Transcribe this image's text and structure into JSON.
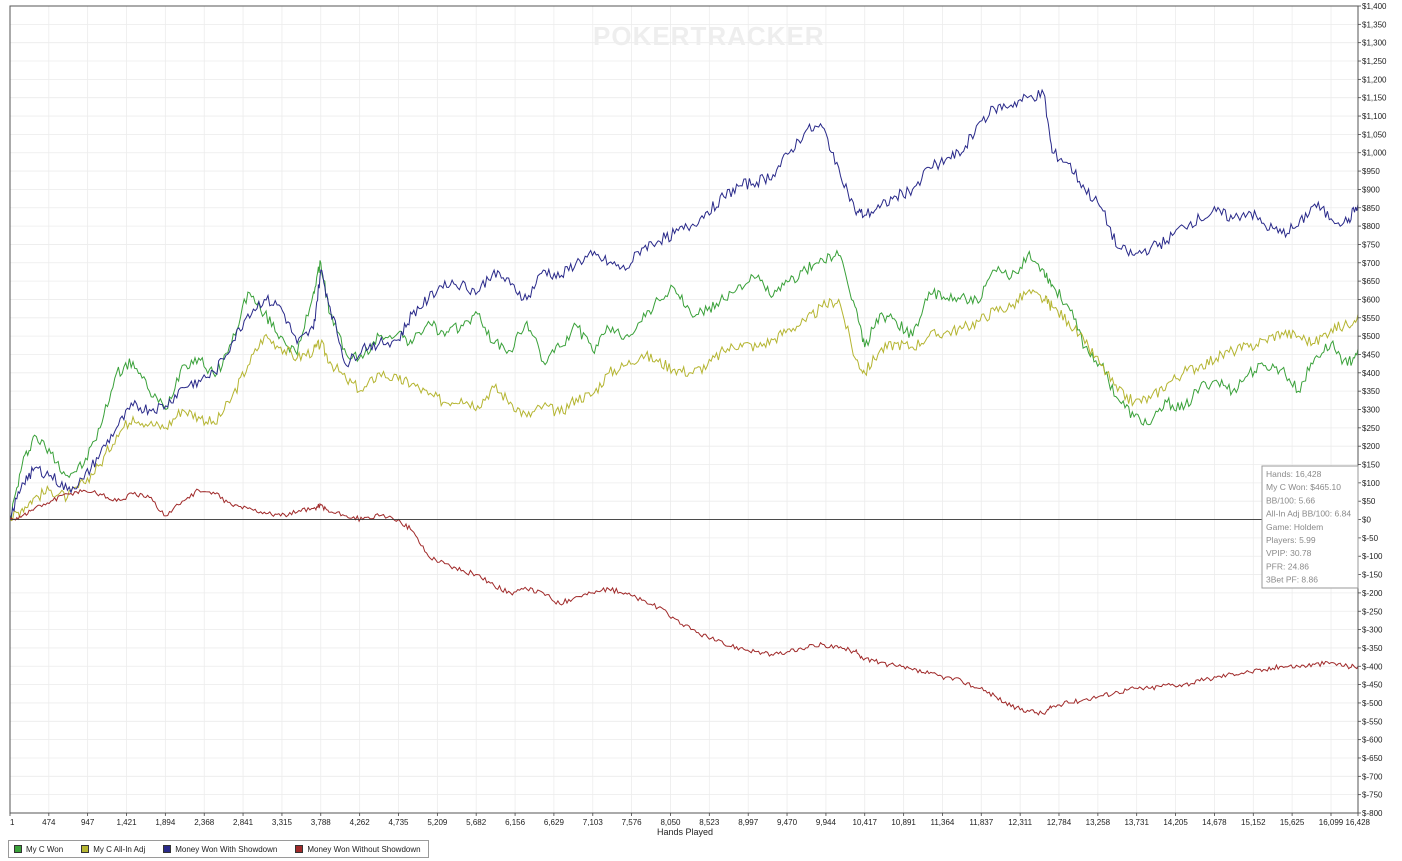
{
  "watermark": "POKERTRACKER",
  "chart_data": {
    "type": "line",
    "xlabel": "Hands Played",
    "ylabel": "",
    "xlim": [
      1,
      16428
    ],
    "ylim": [
      -800,
      1400
    ],
    "x_ticks": [
      1,
      474,
      947,
      1421,
      1894,
      2368,
      2841,
      3315,
      3788,
      4262,
      4735,
      5209,
      5682,
      6156,
      6629,
      7103,
      7576,
      8050,
      8523,
      8997,
      9470,
      9944,
      10417,
      10891,
      11364,
      11837,
      12311,
      12784,
      13258,
      13731,
      14205,
      14678,
      15152,
      15625,
      16099,
      16428
    ],
    "x_tick_labels": [
      "1",
      "474",
      "947",
      "1,421",
      "1,894",
      "2,368",
      "2,841",
      "3,315",
      "3,788",
      "4,262",
      "4,735",
      "5,209",
      "5,682",
      "6,156",
      "6,629",
      "7,103",
      "7,576",
      "8,050",
      "8,523",
      "8,997",
      "9,470",
      "9,944",
      "10,417",
      "10,891",
      "11,364",
      "11,837",
      "12,311",
      "12,784",
      "13,258",
      "13,731",
      "14,205",
      "14,678",
      "15,152",
      "15,625",
      "16,099",
      "16,428"
    ],
    "y_ticks": [
      1400,
      1350,
      1300,
      1250,
      1200,
      1150,
      1100,
      1050,
      1000,
      950,
      900,
      850,
      800,
      750,
      700,
      650,
      600,
      550,
      500,
      450,
      400,
      350,
      300,
      250,
      200,
      150,
      100,
      50,
      0,
      -50,
      -100,
      -150,
      -200,
      -250,
      -300,
      -350,
      -400,
      -450,
      -500,
      -550,
      -600,
      -650,
      -700,
      -750,
      -800
    ],
    "y_tick_labels": [
      "$1,400",
      "$1,350",
      "$1,300",
      "$1,250",
      "$1,200",
      "$1,150",
      "$1,100",
      "$1,050",
      "$1,000",
      "$950",
      "$900",
      "$850",
      "$800",
      "$750",
      "$700",
      "$650",
      "$600",
      "$550",
      "$500",
      "$450",
      "$400",
      "$350",
      "$300",
      "$250",
      "$200",
      "$150",
      "$100",
      "$50",
      "$0",
      "$-50",
      "$-100",
      "$-150",
      "$-200",
      "$-250",
      "$-300",
      "$-350",
      "$-400",
      "$-450",
      "$-500",
      "$-550",
      "$-600",
      "$-650",
      "$-700",
      "$-750",
      "$-800"
    ],
    "grid": true,
    "legend_position": "bottom-left",
    "series": [
      {
        "name": "My C Won",
        "color": "#3aa13a",
        "x": [
          1,
          150,
          300,
          500,
          700,
          900,
          1100,
          1300,
          1500,
          1700,
          1900,
          2100,
          2300,
          2500,
          2700,
          2900,
          3100,
          3300,
          3500,
          3700,
          3788,
          3900,
          4100,
          4300,
          4500,
          4735,
          4900,
          5100,
          5300,
          5500,
          5700,
          5900,
          6100,
          6300,
          6500,
          6700,
          6900,
          7100,
          7300,
          7500,
          7700,
          7900,
          8100,
          8300,
          8500,
          8700,
          8900,
          9100,
          9300,
          9500,
          9700,
          9900,
          10100,
          10300,
          10417,
          10600,
          10800,
          11000,
          11200,
          11400,
          11600,
          11800,
          12000,
          12200,
          12400,
          12600,
          12700,
          12900,
          13100,
          13300,
          13500,
          13700,
          13900,
          14100,
          14300,
          14500,
          14700,
          14900,
          15100,
          15300,
          15500,
          15700,
          15900,
          16100,
          16300,
          16428
        ],
        "y": [
          0,
          150,
          230,
          180,
          120,
          150,
          250,
          400,
          430,
          350,
          300,
          420,
          440,
          390,
          480,
          620,
          560,
          500,
          450,
          620,
          700,
          560,
          450,
          440,
          500,
          510,
          480,
          540,
          500,
          530,
          560,
          480,
          460,
          540,
          430,
          470,
          530,
          460,
          520,
          500,
          540,
          600,
          630,
          560,
          570,
          600,
          640,
          660,
          610,
          650,
          680,
          710,
          720,
          580,
          470,
          560,
          540,
          500,
          620,
          600,
          610,
          590,
          680,
          660,
          720,
          680,
          640,
          580,
          470,
          420,
          330,
          280,
          260,
          320,
          300,
          360,
          380,
          350,
          400,
          420,
          410,
          350,
          440,
          480,
          420,
          465
        ]
      },
      {
        "name": "My C All-In Adj",
        "color": "#b5b532",
        "x": [
          1,
          150,
          300,
          500,
          700,
          900,
          1100,
          1300,
          1500,
          1700,
          1900,
          2100,
          2300,
          2500,
          2700,
          2900,
          3100,
          3300,
          3500,
          3700,
          3788,
          3900,
          4100,
          4300,
          4500,
          4735,
          4900,
          5100,
          5300,
          5500,
          5700,
          5900,
          6100,
          6300,
          6500,
          6700,
          6900,
          7100,
          7300,
          7500,
          7700,
          7900,
          8100,
          8300,
          8500,
          8700,
          8900,
          9100,
          9300,
          9500,
          9700,
          9900,
          10100,
          10300,
          10417,
          10600,
          10800,
          11000,
          11200,
          11400,
          11600,
          11800,
          12000,
          12200,
          12400,
          12600,
          12700,
          12900,
          13100,
          13300,
          13500,
          13700,
          13900,
          14100,
          14300,
          14500,
          14700,
          14900,
          15100,
          15300,
          15500,
          15700,
          15900,
          16100,
          16300,
          16428
        ],
        "y": [
          0,
          30,
          60,
          80,
          60,
          100,
          150,
          230,
          280,
          260,
          250,
          300,
          280,
          260,
          330,
          420,
          500,
          470,
          440,
          460,
          480,
          430,
          380,
          350,
          400,
          380,
          370,
          340,
          320,
          330,
          310,
          360,
          320,
          280,
          310,
          290,
          330,
          340,
          400,
          420,
          450,
          430,
          410,
          400,
          420,
          460,
          480,
          470,
          490,
          520,
          540,
          580,
          600,
          440,
          400,
          460,
          480,
          470,
          500,
          510,
          520,
          540,
          570,
          580,
          620,
          600,
          580,
          540,
          480,
          420,
          350,
          320,
          330,
          370,
          400,
          420,
          440,
          460,
          470,
          490,
          510,
          500,
          480,
          520,
          530,
          560
        ]
      },
      {
        "name": "Money Won With Showdown",
        "color": "#2a2a8a",
        "x": [
          1,
          150,
          300,
          500,
          700,
          900,
          1100,
          1300,
          1500,
          1700,
          1900,
          2100,
          2300,
          2500,
          2700,
          2900,
          3100,
          3300,
          3500,
          3700,
          3788,
          3900,
          4100,
          4300,
          4500,
          4735,
          4900,
          5100,
          5300,
          5500,
          5700,
          5900,
          6100,
          6300,
          6500,
          6700,
          6900,
          7100,
          7300,
          7500,
          7700,
          7900,
          8100,
          8300,
          8500,
          8700,
          8900,
          9100,
          9300,
          9500,
          9700,
          9900,
          10100,
          10300,
          10417,
          10600,
          10800,
          11000,
          11200,
          11400,
          11600,
          11800,
          12000,
          12200,
          12400,
          12600,
          12700,
          12900,
          13100,
          13300,
          13500,
          13700,
          13900,
          14100,
          14300,
          14500,
          14700,
          14900,
          15100,
          15300,
          15500,
          15700,
          15900,
          16100,
          16300,
          16428
        ],
        "y": [
          0,
          100,
          140,
          120,
          80,
          110,
          180,
          250,
          310,
          300,
          310,
          360,
          380,
          400,
          480,
          560,
          600,
          580,
          480,
          520,
          680,
          580,
          420,
          470,
          480,
          490,
          560,
          600,
          650,
          640,
          620,
          680,
          640,
          600,
          680,
          660,
          700,
          720,
          700,
          680,
          740,
          760,
          780,
          800,
          840,
          880,
          910,
          920,
          940,
          1000,
          1060,
          1070,
          960,
          840,
          830,
          850,
          880,
          900,
          960,
          980,
          1000,
          1080,
          1120,
          1130,
          1150,
          1160,
          1000,
          970,
          900,
          850,
          740,
          720,
          740,
          760,
          800,
          820,
          840,
          820,
          840,
          800,
          780,
          800,
          860,
          820,
          810,
          860
        ]
      },
      {
        "name": "Money Won Without Showdown",
        "color": "#a02a2a",
        "x": [
          1,
          150,
          300,
          500,
          700,
          900,
          1100,
          1300,
          1500,
          1700,
          1900,
          2100,
          2300,
          2500,
          2700,
          2900,
          3100,
          3300,
          3500,
          3700,
          3788,
          3900,
          4100,
          4300,
          4500,
          4735,
          4900,
          5100,
          5300,
          5500,
          5700,
          5900,
          6100,
          6300,
          6500,
          6700,
          6900,
          7100,
          7300,
          7500,
          7700,
          7900,
          8100,
          8300,
          8500,
          8700,
          8900,
          9100,
          9300,
          9500,
          9700,
          9900,
          10100,
          10300,
          10417,
          10600,
          10800,
          11000,
          11200,
          11400,
          11600,
          11800,
          12000,
          12200,
          12400,
          12600,
          12700,
          12900,
          13100,
          13300,
          13500,
          13700,
          13900,
          14100,
          14300,
          14500,
          14700,
          14900,
          15100,
          15300,
          15500,
          15700,
          15900,
          16100,
          16300,
          16428
        ],
        "y": [
          0,
          10,
          30,
          50,
          70,
          80,
          70,
          50,
          70,
          60,
          10,
          50,
          80,
          70,
          40,
          30,
          20,
          10,
          20,
          30,
          40,
          20,
          10,
          0,
          10,
          0,
          -30,
          -100,
          -120,
          -140,
          -150,
          -180,
          -200,
          -190,
          -200,
          -230,
          -210,
          -200,
          -190,
          -200,
          -220,
          -240,
          -270,
          -300,
          -320,
          -340,
          -350,
          -360,
          -370,
          -360,
          -350,
          -340,
          -350,
          -360,
          -380,
          -390,
          -400,
          -410,
          -420,
          -430,
          -440,
          -460,
          -480,
          -510,
          -520,
          -530,
          -510,
          -500,
          -490,
          -480,
          -470,
          -460,
          -460,
          -450,
          -450,
          -440,
          -430,
          -420,
          -415,
          -410,
          -400,
          -400,
          -395,
          -390,
          -400,
          -400
        ]
      }
    ]
  },
  "info_box": {
    "lines": [
      "Hands: 16,428",
      "My C Won: $465.10",
      "BB/100: 5.66",
      "All-In Adj BB/100: 6.84",
      "Game: Holdem",
      "Players: 5.99",
      "VPIP: 30.78",
      "PFR: 24.86",
      "3Bet PF: 8.86"
    ]
  }
}
